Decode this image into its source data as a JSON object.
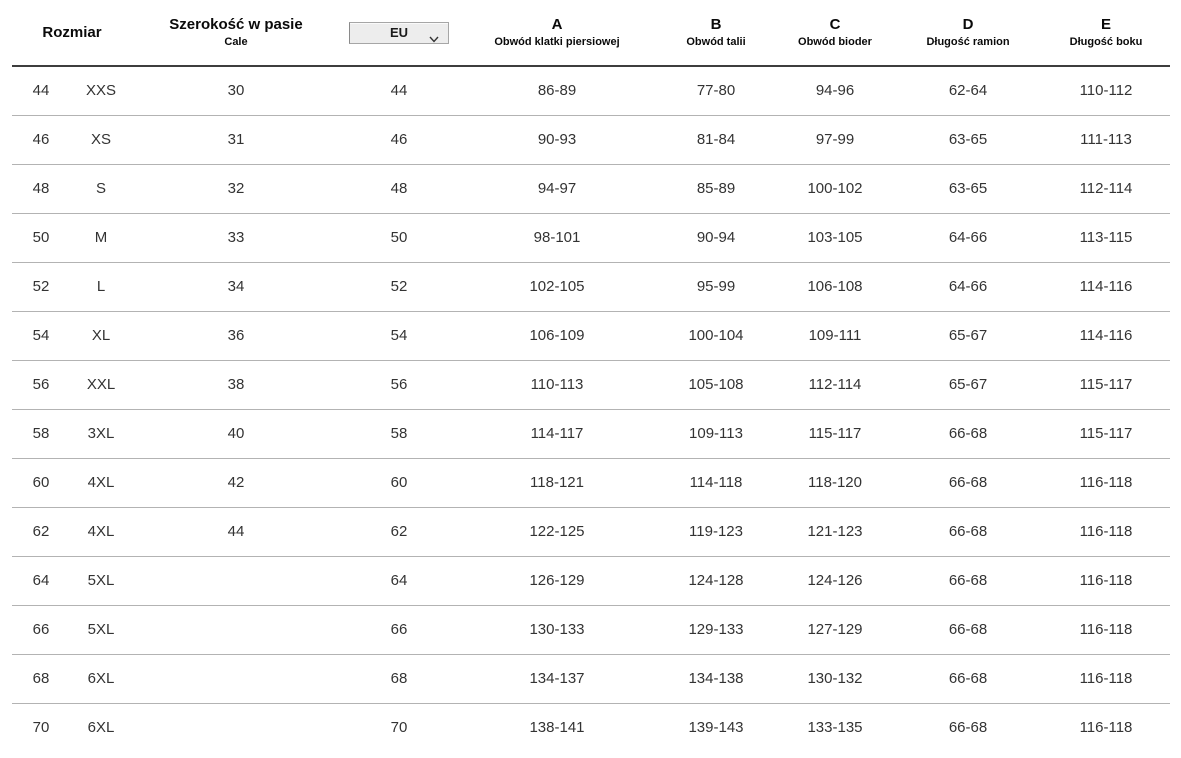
{
  "header": {
    "rozmiar_label": "Rozmiar",
    "width_label": "Szerokość w pasie",
    "width_sublabel": "Cale",
    "unit_select": {
      "value": "EU"
    },
    "columns": [
      {
        "letter": "A",
        "desc": "Obwód klatki piersiowej"
      },
      {
        "letter": "B",
        "desc": "Obwód talii"
      },
      {
        "letter": "C",
        "desc": "Obwód bioder"
      },
      {
        "letter": "D",
        "desc": "Długość ramion"
      },
      {
        "letter": "E",
        "desc": "Długość boku"
      }
    ]
  },
  "table": {
    "cell_keys": [
      "size",
      "label",
      "inches",
      "eu",
      "a",
      "b",
      "c",
      "d",
      "e"
    ],
    "rows": [
      {
        "size": "44",
        "label": "XXS",
        "inches": "30",
        "eu": "44",
        "a": "86-89",
        "b": "77-80",
        "c": "94-96",
        "d": "62-64",
        "e": "110-112"
      },
      {
        "size": "46",
        "label": "XS",
        "inches": "31",
        "eu": "46",
        "a": "90-93",
        "b": "81-84",
        "c": "97-99",
        "d": "63-65",
        "e": "111-113"
      },
      {
        "size": "48",
        "label": "S",
        "inches": "32",
        "eu": "48",
        "a": "94-97",
        "b": "85-89",
        "c": "100-102",
        "d": "63-65",
        "e": "112-114"
      },
      {
        "size": "50",
        "label": "M",
        "inches": "33",
        "eu": "50",
        "a": "98-101",
        "b": "90-94",
        "c": "103-105",
        "d": "64-66",
        "e": "113-115"
      },
      {
        "size": "52",
        "label": "L",
        "inches": "34",
        "eu": "52",
        "a": "102-105",
        "b": "95-99",
        "c": "106-108",
        "d": "64-66",
        "e": "114-116"
      },
      {
        "size": "54",
        "label": "XL",
        "inches": "36",
        "eu": "54",
        "a": "106-109",
        "b": "100-104",
        "c": "109-111",
        "d": "65-67",
        "e": "114-116"
      },
      {
        "size": "56",
        "label": "XXL",
        "inches": "38",
        "eu": "56",
        "a": "110-113",
        "b": "105-108",
        "c": "112-114",
        "d": "65-67",
        "e": "115-117"
      },
      {
        "size": "58",
        "label": "3XL",
        "inches": "40",
        "eu": "58",
        "a": "114-117",
        "b": "109-113",
        "c": "115-117",
        "d": "66-68",
        "e": "115-117"
      },
      {
        "size": "60",
        "label": "4XL",
        "inches": "42",
        "eu": "60",
        "a": "118-121",
        "b": "114-118",
        "c": "118-120",
        "d": "66-68",
        "e": "116-118"
      },
      {
        "size": "62",
        "label": "4XL",
        "inches": "44",
        "eu": "62",
        "a": "122-125",
        "b": "119-123",
        "c": "121-123",
        "d": "66-68",
        "e": "116-118"
      },
      {
        "size": "64",
        "label": "5XL",
        "inches": "",
        "eu": "64",
        "a": "126-129",
        "b": "124-128",
        "c": "124-126",
        "d": "66-68",
        "e": "116-118"
      },
      {
        "size": "66",
        "label": "5XL",
        "inches": "",
        "eu": "66",
        "a": "130-133",
        "b": "129-133",
        "c": "127-129",
        "d": "66-68",
        "e": "116-118"
      },
      {
        "size": "68",
        "label": "6XL",
        "inches": "",
        "eu": "68",
        "a": "134-137",
        "b": "134-138",
        "c": "130-132",
        "d": "66-68",
        "e": "116-118"
      },
      {
        "size": "70",
        "label": "6XL",
        "inches": "",
        "eu": "70",
        "a": "138-141",
        "b": "139-143",
        "c": "133-135",
        "d": "66-68",
        "e": "116-118"
      }
    ]
  },
  "colors": {
    "header_rule": "#3d3d3d",
    "row_rule": "#b3b3b3",
    "text": "#333333",
    "select_background": "#ededed",
    "select_border": "#a6a6a6"
  }
}
